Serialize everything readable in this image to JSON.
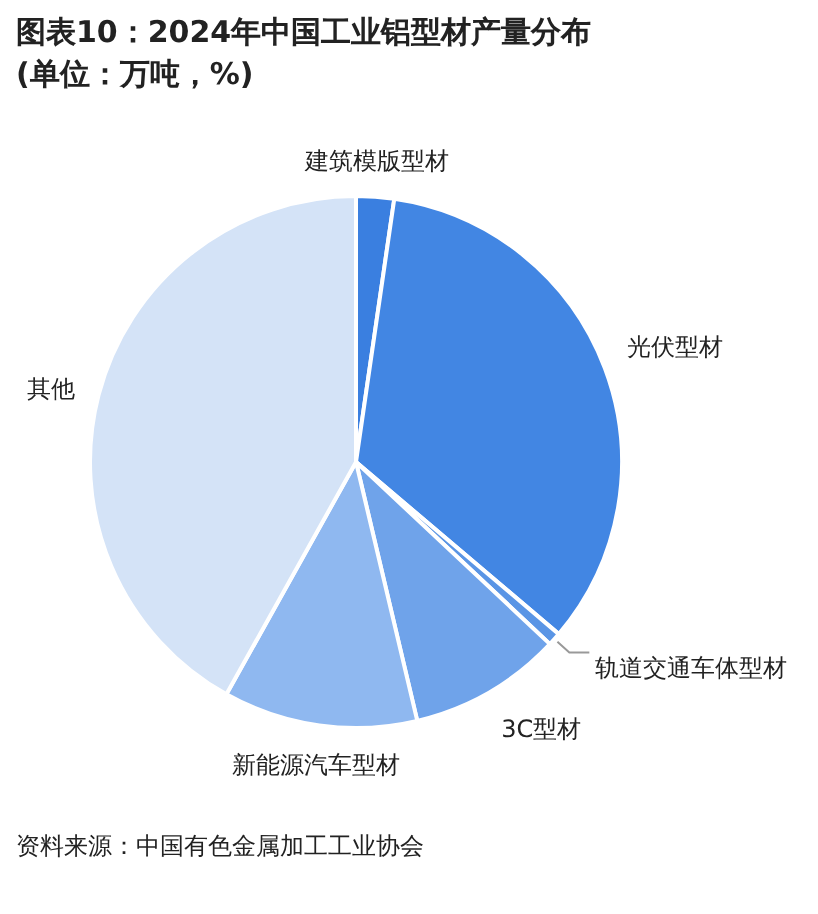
{
  "chart_data": {
    "type": "pie",
    "title": "图表10：2024年中国工业铝型材产量分布(单位：万吨，%)",
    "categories": [
      "建筑模版型材",
      "光伏型材",
      "轨道交通车体型材",
      "3C型材",
      "新能源汽车型材",
      "其他"
    ],
    "values": [
      2.3,
      33.9,
      0.8,
      9.3,
      11.8,
      41.9
    ],
    "colors": [
      "#3a7fe0",
      "#4286e3",
      "#5a95e5",
      "#6fa3ea",
      "#8fb8f0",
      "#d4e3f7"
    ],
    "annotations": [
      "资料来源：中国有色金属加工工业协会"
    ]
  }
}
